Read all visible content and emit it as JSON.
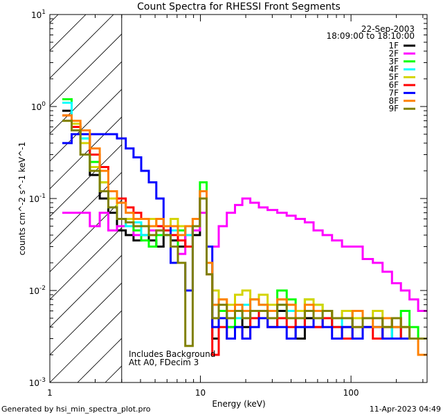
{
  "chart_data": {
    "type": "line",
    "title": "Count Spectra for RHESSI Front Segments",
    "xlabel": "Energy (keV)",
    "ylabel": "counts cm^-2 s^-1 keV^-1",
    "xscale": "log",
    "yscale": "log",
    "xlim": [
      1,
      320
    ],
    "ylim": [
      0.001,
      10
    ],
    "x_ticks": [
      {
        "value": 1,
        "label": "1"
      },
      {
        "value": 10,
        "label": "10"
      },
      {
        "value": 100,
        "label": "100"
      }
    ],
    "y_ticks": [
      {
        "value": 0.001,
        "base": "10",
        "exp": "-3"
      },
      {
        "value": 0.01,
        "base": "10",
        "exp": "-2"
      },
      {
        "value": 0.1,
        "base": "10",
        "exp": "-1"
      },
      {
        "value": 1,
        "base": "10",
        "exp": "0"
      },
      {
        "value": 10,
        "base": "10",
        "exp": "1"
      }
    ],
    "hatched_region_keV": [
      1,
      3
    ],
    "annotations": {
      "date": "22-Sep-2003",
      "time_range": "18:09:00 to 18:10:00",
      "note1": "Includes Background",
      "note2": "Att A0, FDecim 3"
    },
    "legend_position": "top-right",
    "x": [
      1.3,
      1.5,
      1.7,
      2.0,
      2.3,
      2.6,
      3.0,
      3.4,
      3.8,
      4.3,
      4.8,
      5.4,
      6.0,
      6.7,
      7.5,
      8.4,
      9.4,
      10.5,
      11.5,
      12.5,
      14,
      16,
      18,
      20,
      23,
      26,
      30,
      35,
      40,
      46,
      53,
      60,
      70,
      80,
      95,
      110,
      130,
      150,
      175,
      200,
      230,
      260,
      300
    ],
    "series": [
      {
        "name": "1F",
        "color": "#000000",
        "values": [
          0.9,
          0.55,
          0.5,
          0.18,
          0.1,
          0.07,
          0.045,
          0.04,
          0.035,
          0.04,
          0.035,
          0.03,
          0.04,
          0.035,
          0.03,
          0.05,
          0.04,
          0.1,
          0.02,
          0.003,
          0.006,
          0.004,
          0.005,
          0.004,
          0.006,
          0.005,
          0.004,
          0.006,
          0.005,
          0.003,
          0.005,
          0.004,
          0.005,
          0.004,
          0.004,
          0.005,
          0.004,
          0.004,
          0.003,
          0.004,
          0.003,
          0.003,
          0.003
        ]
      },
      {
        "name": "2F",
        "color": "#ff00ff",
        "values": [
          0.07,
          0.07,
          0.07,
          0.05,
          0.07,
          0.045,
          0.05,
          0.05,
          0.04,
          0.05,
          0.045,
          0.045,
          0.05,
          0.03,
          0.025,
          0.04,
          0.045,
          0.07,
          0.03,
          0.03,
          0.05,
          0.07,
          0.085,
          0.1,
          0.09,
          0.08,
          0.075,
          0.07,
          0.065,
          0.06,
          0.055,
          0.045,
          0.04,
          0.035,
          0.03,
          0.03,
          0.022,
          0.02,
          0.016,
          0.012,
          0.01,
          0.008,
          0.006
        ]
      },
      {
        "name": "3F",
        "color": "#00ff00",
        "values": [
          1.2,
          0.6,
          0.45,
          0.25,
          0.15,
          0.1,
          0.06,
          0.05,
          0.045,
          0.035,
          0.03,
          0.04,
          0.04,
          0.03,
          0.045,
          0.05,
          0.05,
          0.15,
          0.02,
          0.005,
          0.006,
          0.004,
          0.005,
          0.006,
          0.008,
          0.007,
          0.006,
          0.01,
          0.008,
          0.006,
          0.008,
          0.007,
          0.006,
          0.005,
          0.005,
          0.006,
          0.005,
          0.005,
          0.004,
          0.005,
          0.006,
          0.004,
          0.003
        ]
      },
      {
        "name": "4F",
        "color": "#00ffff",
        "values": [
          1.1,
          0.6,
          0.45,
          0.2,
          0.12,
          0.08,
          0.06,
          0.05,
          0.055,
          0.04,
          0.05,
          0.05,
          0.04,
          0.045,
          0.05,
          0.04,
          0.06,
          0.12,
          0.02,
          0.007,
          0.005,
          0.006,
          0.005,
          0.007,
          0.006,
          0.006,
          0.005,
          0.007,
          0.006,
          0.004,
          0.006,
          0.005,
          0.006,
          0.004,
          0.005,
          0.005,
          0.004,
          0.004,
          0.005,
          0.003,
          0.004,
          0.003,
          0.003
        ]
      },
      {
        "name": "5F",
        "color": "#d4d400",
        "values": [
          0.7,
          0.65,
          0.4,
          0.22,
          0.15,
          0.1,
          0.06,
          0.06,
          0.05,
          0.05,
          0.06,
          0.05,
          0.05,
          0.06,
          0.05,
          0.05,
          0.06,
          0.12,
          0.02,
          0.01,
          0.008,
          0.007,
          0.009,
          0.01,
          0.008,
          0.009,
          0.007,
          0.008,
          0.007,
          0.006,
          0.008,
          0.007,
          0.006,
          0.005,
          0.006,
          0.005,
          0.005,
          0.006,
          0.004,
          0.005,
          0.004,
          0.003,
          0.003
        ]
      },
      {
        "name": "6F",
        "color": "#ff0000",
        "values": [
          0.8,
          0.6,
          0.5,
          0.3,
          0.22,
          0.12,
          0.1,
          0.08,
          0.07,
          0.06,
          0.05,
          0.05,
          0.045,
          0.04,
          0.035,
          0.03,
          0.05,
          0.12,
          0.015,
          0.002,
          0.004,
          0.003,
          0.004,
          0.003,
          0.005,
          0.006,
          0.004,
          0.005,
          0.004,
          0.005,
          0.004,
          0.004,
          0.005,
          0.004,
          0.003,
          0.004,
          0.004,
          0.003,
          0.004,
          0.005,
          0.003,
          0.003,
          0.003
        ]
      },
      {
        "name": "7F",
        "color": "#0000ff",
        "values": [
          0.4,
          0.5,
          0.5,
          0.5,
          0.5,
          0.5,
          0.45,
          0.35,
          0.28,
          0.2,
          0.15,
          0.1,
          0.05,
          0.02,
          0.02,
          0.01,
          0.05,
          0.1,
          0.03,
          0.004,
          0.005,
          0.003,
          0.004,
          0.003,
          0.004,
          0.005,
          0.004,
          0.004,
          0.003,
          0.004,
          0.004,
          0.005,
          0.004,
          0.003,
          0.004,
          0.003,
          0.004,
          0.004,
          0.003,
          0.003,
          0.003,
          0.003,
          0.003
        ]
      },
      {
        "name": "8F",
        "color": "#ff8000",
        "values": [
          0.8,
          0.7,
          0.55,
          0.35,
          0.2,
          0.12,
          0.09,
          0.07,
          0.06,
          0.06,
          0.05,
          0.06,
          0.05,
          0.05,
          0.04,
          0.05,
          0.06,
          0.12,
          0.02,
          0.007,
          0.008,
          0.006,
          0.007,
          0.006,
          0.008,
          0.007,
          0.006,
          0.008,
          0.007,
          0.005,
          0.007,
          0.006,
          0.006,
          0.005,
          0.005,
          0.006,
          0.005,
          0.004,
          0.005,
          0.004,
          0.004,
          0.003,
          0.002
        ]
      },
      {
        "name": "9F",
        "color": "#808000",
        "values": [
          0.7,
          0.55,
          0.3,
          0.2,
          0.12,
          0.08,
          0.06,
          0.055,
          0.05,
          0.05,
          0.04,
          0.045,
          0.04,
          0.03,
          0.02,
          0.0025,
          0.05,
          0.1,
          0.015,
          0.005,
          0.007,
          0.005,
          0.006,
          0.005,
          0.006,
          0.006,
          0.005,
          0.007,
          0.005,
          0.005,
          0.006,
          0.005,
          0.006,
          0.005,
          0.005,
          0.004,
          0.005,
          0.005,
          0.004,
          0.005,
          0.004,
          0.003,
          0.003
        ]
      }
    ]
  },
  "footer": {
    "generated_by": "Generated by hsi_min_spectra_plot.pro",
    "timestamp": "11-Apr-2023 04:49"
  }
}
